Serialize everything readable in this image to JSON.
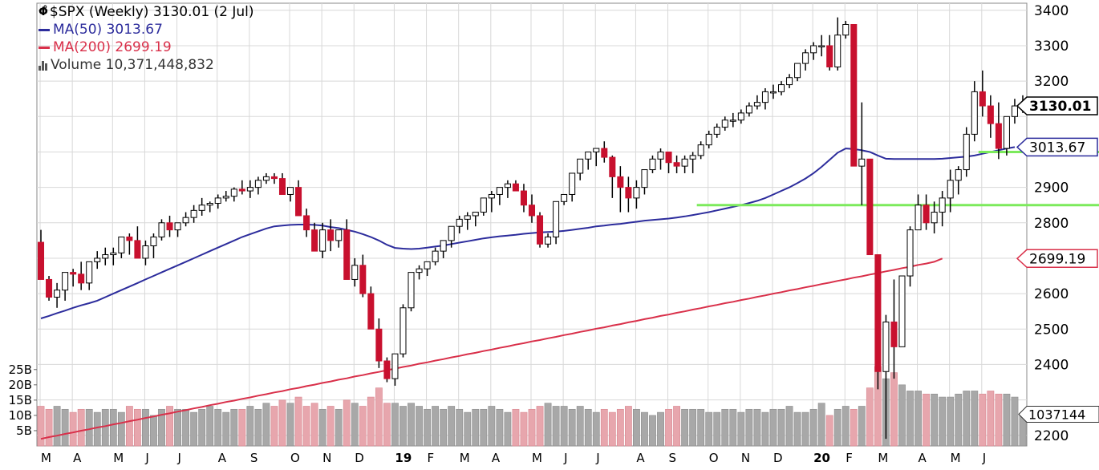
{
  "legend": {
    "symbol_line": "$SPX (Weekly) 3130.01 (2 Jul)",
    "ma50_line": "MA(50) 3013.67",
    "ma200_line": "MA(200) 2699.19",
    "volume_line": "Volume 10,371,448,832"
  },
  "colors": {
    "up_fill": "#ffffff",
    "down_fill": "#c8102e",
    "candle_outline": "#000000",
    "ma50": "#2c2c9c",
    "ma200": "#d9304a",
    "support": "#7cea5c",
    "volume_up": "#a8a8a8",
    "volume_down": "#e7a6ad",
    "grid": "#d8d8d8"
  },
  "chart_data": {
    "type": "candlestick",
    "symbol": "$SPX",
    "interval": "Weekly",
    "ylim": [
      2170,
      3420
    ],
    "y_ticks": [
      2200,
      2300,
      2400,
      2500,
      2600,
      2700,
      2800,
      2900,
      3000,
      3100,
      3200,
      3300,
      3400
    ],
    "y_tick_labels": [
      "2200",
      "",
      "2400",
      "2500",
      "2600",
      "",
      "2800",
      "2900",
      "",
      "",
      "3200",
      "3300",
      "3400"
    ],
    "volume_ticks": [
      "5B",
      "10B",
      "15B",
      "20B",
      "25B"
    ],
    "volume_tick_values": [
      5,
      10,
      15,
      20,
      25
    ],
    "volume_ylim": [
      0,
      42
    ],
    "x_labels": [
      "M",
      "A",
      "M",
      "J",
      "J",
      "A",
      "S",
      "O",
      "N",
      "D",
      "19",
      "F",
      "M",
      "A",
      "M",
      "J",
      "J",
      "A",
      "S",
      "O",
      "N",
      "D",
      "20",
      "F",
      "M",
      "A",
      "M",
      "J"
    ],
    "x_label_week_index": [
      0,
      4,
      9,
      13,
      17,
      22,
      26,
      31,
      35,
      39,
      44,
      48,
      52,
      56,
      61,
      65,
      69,
      74,
      78,
      83,
      87,
      91,
      96,
      100,
      104,
      109,
      113,
      117
    ],
    "price_badges": [
      {
        "label": "3130.01",
        "value": 3130.01,
        "style": "last"
      },
      {
        "label": "3013.67",
        "value": 3013.67,
        "style": "ma50"
      },
      {
        "label": "2699.19",
        "value": 2699.19,
        "style": "ma200"
      }
    ],
    "volume_badge": {
      "label": "1037144",
      "value": 10.37
    },
    "support_lines": [
      {
        "value": 3000,
        "from_week": 117,
        "to_week": 122
      },
      {
        "value": 2850,
        "from_week": 82,
        "to_week": 122
      }
    ],
    "series": [
      {
        "name": "MA(50)",
        "values": [
          2530,
          2537,
          2545,
          2552,
          2560,
          2567,
          2573,
          2580,
          2590,
          2600,
          2610,
          2620,
          2630,
          2640,
          2650,
          2660,
          2670,
          2680,
          2690,
          2700,
          2710,
          2720,
          2730,
          2740,
          2750,
          2760,
          2768,
          2776,
          2784,
          2790,
          2792,
          2794,
          2795,
          2795,
          2794,
          2792,
          2788,
          2785,
          2780,
          2775,
          2768,
          2760,
          2750,
          2738,
          2729,
          2727,
          2726,
          2727,
          2730,
          2733,
          2736,
          2740,
          2744,
          2748,
          2752,
          2756,
          2759,
          2762,
          2764,
          2766,
          2769,
          2771,
          2773,
          2774,
          2775,
          2777,
          2780,
          2783,
          2786,
          2790,
          2792,
          2795,
          2797,
          2800,
          2803,
          2806,
          2808,
          2810,
          2812,
          2815,
          2818,
          2822,
          2826,
          2830,
          2835,
          2840,
          2845,
          2850,
          2856,
          2862,
          2870,
          2880,
          2890,
          2900,
          2912,
          2925,
          2940,
          2958,
          2978,
          2998,
          3010,
          3008,
          3005,
          3000,
          2990,
          2981,
          2980,
          2980,
          2980,
          2980,
          2980,
          2980,
          2981,
          2983,
          2985,
          2987,
          2990,
          2995,
          3000,
          3005,
          3010,
          3013.67
        ]
      },
      {
        "name": "MA(200)",
        "values": [
          2190,
          2195,
          2199,
          2204,
          2208,
          2213,
          2217,
          2222,
          2226,
          2231,
          2235,
          2240,
          2244,
          2249,
          2253,
          2258,
          2262,
          2267,
          2271,
          2276,
          2280,
          2285,
          2289,
          2294,
          2298,
          2303,
          2307,
          2312,
          2316,
          2321,
          2325,
          2330,
          2334,
          2339,
          2343,
          2348,
          2352,
          2357,
          2361,
          2366,
          2370,
          2375,
          2379,
          2384,
          2388,
          2393,
          2397,
          2402,
          2406,
          2411,
          2415,
          2420,
          2424,
          2429,
          2433,
          2438,
          2442,
          2447,
          2451,
          2456,
          2460,
          2465,
          2469,
          2474,
          2478,
          2483,
          2487,
          2492,
          2496,
          2501,
          2505,
          2510,
          2514,
          2519,
          2523,
          2528,
          2532,
          2537,
          2541,
          2546,
          2550,
          2555,
          2559,
          2564,
          2568,
          2573,
          2577,
          2582,
          2586,
          2591,
          2595,
          2600,
          2604,
          2609,
          2613,
          2618,
          2622,
          2627,
          2631,
          2636,
          2640,
          2645,
          2649,
          2654,
          2658,
          2663,
          2667,
          2672,
          2676,
          2681,
          2685,
          2690,
          2699.19
        ]
      },
      {
        "name": "Candles",
        "open": [
          2745,
          2640,
          2590,
          2610,
          2660,
          2655,
          2630,
          2690,
          2700,
          2710,
          2715,
          2760,
          2750,
          2700,
          2735,
          2760,
          2800,
          2780,
          2800,
          2815,
          2835,
          2850,
          2855,
          2870,
          2875,
          2895,
          2890,
          2900,
          2920,
          2930,
          2925,
          2880,
          2900,
          2820,
          2780,
          2720,
          2780,
          2750,
          2780,
          2640,
          2680,
          2600,
          2500,
          2410,
          2360,
          2430,
          2560,
          2660,
          2670,
          2690,
          2720,
          2750,
          2790,
          2810,
          2820,
          2830,
          2870,
          2880,
          2900,
          2910,
          2890,
          2850,
          2820,
          2740,
          2760,
          2860,
          2880,
          2940,
          2980,
          3000,
          3010,
          2985,
          2930,
          2900,
          2870,
          2900,
          2950,
          2980,
          3000,
          2970,
          2960,
          2980,
          2990,
          3020,
          3050,
          3070,
          3090,
          3090,
          3110,
          3130,
          3140,
          3170,
          3170,
          3190,
          3210,
          3250,
          3280,
          3300,
          3300,
          3240,
          3330,
          3360,
          2960,
          2980,
          2710,
          2380,
          2520,
          2450,
          2650,
          2780,
          2850,
          2800,
          2830,
          2870,
          2920,
          2950,
          3050,
          3170,
          3130,
          3080,
          3010,
          3100,
          3130
        ]
      },
      {
        "name": "Candles.high",
        "values": [
          2780,
          2650,
          2630,
          2640,
          2670,
          2690,
          2690,
          2720,
          2730,
          2730,
          2760,
          2770,
          2790,
          2750,
          2770,
          2810,
          2820,
          2800,
          2830,
          2850,
          2870,
          2860,
          2880,
          2890,
          2900,
          2920,
          2920,
          2930,
          2940,
          2940,
          2940,
          2900,
          2920,
          2840,
          2800,
          2800,
          2810,
          2780,
          2810,
          2700,
          2710,
          2620,
          2530,
          2420,
          2430,
          2570,
          2650,
          2680,
          2690,
          2730,
          2750,
          2790,
          2820,
          2830,
          2830,
          2870,
          2890,
          2900,
          2920,
          2920,
          2910,
          2880,
          2830,
          2770,
          2850,
          2880,
          2940,
          2980,
          3000,
          3010,
          3030,
          2990,
          2960,
          2930,
          2920,
          2950,
          2990,
          3010,
          3000,
          2990,
          2990,
          3000,
          3030,
          3060,
          3080,
          3100,
          3110,
          3120,
          3140,
          3160,
          3180,
          3190,
          3200,
          3220,
          3250,
          3290,
          3310,
          3330,
          3330,
          3380,
          3370,
          3360,
          3140,
          2980,
          2710,
          2540,
          2640,
          2650,
          2790,
          2880,
          2880,
          2860,
          2890,
          2950,
          2960,
          3070,
          3200,
          3230,
          3160,
          3140,
          3100,
          3150,
          3160
        ]
      },
      {
        "name": "Candles.low",
        "values": [
          2680,
          2580,
          2560,
          2580,
          2620,
          2610,
          2610,
          2670,
          2680,
          2680,
          2700,
          2710,
          2720,
          2680,
          2700,
          2750,
          2760,
          2760,
          2790,
          2800,
          2820,
          2830,
          2840,
          2860,
          2860,
          2880,
          2870,
          2880,
          2910,
          2910,
          2880,
          2860,
          2860,
          2760,
          2730,
          2700,
          2720,
          2730,
          2650,
          2620,
          2590,
          2520,
          2390,
          2350,
          2340,
          2420,
          2550,
          2640,
          2650,
          2680,
          2700,
          2730,
          2770,
          2780,
          2790,
          2820,
          2830,
          2850,
          2870,
          2890,
          2830,
          2800,
          2730,
          2730,
          2740,
          2850,
          2860,
          2920,
          2950,
          2960,
          2970,
          2870,
          2830,
          2830,
          2840,
          2880,
          2940,
          2950,
          2940,
          2940,
          2940,
          2940,
          2980,
          3010,
          3040,
          3060,
          3070,
          3080,
          3100,
          3120,
          3120,
          3150,
          3160,
          3180,
          3200,
          3230,
          3260,
          3270,
          3230,
          3230,
          3320,
          3200,
          2850,
          2720,
          2330,
          2190,
          2360,
          2450,
          2620,
          2780,
          2780,
          2770,
          2790,
          2830,
          2880,
          2930,
          3030,
          3100,
          3040,
          2980,
          2990,
          3080,
          3110
        ]
      },
      {
        "name": "Candles.close",
        "values": [
          2640,
          2590,
          2610,
          2660,
          2655,
          2630,
          2690,
          2700,
          2710,
          2715,
          2760,
          2750,
          2700,
          2735,
          2760,
          2800,
          2780,
          2800,
          2815,
          2835,
          2850,
          2855,
          2870,
          2875,
          2895,
          2890,
          2900,
          2920,
          2930,
          2925,
          2880,
          2900,
          2820,
          2780,
          2720,
          2780,
          2750,
          2780,
          2640,
          2680,
          2600,
          2500,
          2410,
          2360,
          2430,
          2560,
          2660,
          2670,
          2690,
          2720,
          2750,
          2790,
          2810,
          2820,
          2830,
          2870,
          2880,
          2900,
          2910,
          2890,
          2850,
          2820,
          2740,
          2760,
          2860,
          2880,
          2940,
          2980,
          3000,
          3010,
          2985,
          2930,
          2900,
          2870,
          2900,
          2950,
          2980,
          3000,
          2970,
          2960,
          2980,
          2990,
          3020,
          3050,
          3070,
          3090,
          3090,
          3110,
          3130,
          3140,
          3170,
          3170,
          3190,
          3210,
          3250,
          3280,
          3300,
          3300,
          3240,
          3330,
          3360,
          2960,
          2980,
          2710,
          2380,
          2520,
          2450,
          2650,
          2780,
          2850,
          2800,
          2830,
          2870,
          2920,
          2950,
          3050,
          3170,
          3130,
          3080,
          3010,
          3100,
          3130,
          3130.01
        ]
      },
      {
        "name": "Volume",
        "values": [
          13,
          12,
          13,
          12,
          11,
          12,
          12,
          11,
          12,
          12,
          11,
          13,
          12,
          12,
          10,
          12,
          13,
          12,
          12,
          11,
          12,
          13,
          12,
          11,
          12,
          12,
          13,
          12,
          14,
          13,
          15,
          14,
          16,
          13,
          14,
          12,
          13,
          12,
          15,
          14,
          13,
          16,
          19,
          14,
          14,
          13,
          14,
          13,
          12,
          13,
          12,
          13,
          12,
          11,
          12,
          12,
          13,
          12,
          11,
          12,
          11,
          12,
          13,
          14,
          13,
          13,
          12,
          13,
          12,
          11,
          12,
          11,
          12,
          13,
          12,
          11,
          10,
          11,
          12,
          13,
          12,
          12,
          12,
          11,
          11,
          12,
          12,
          11,
          12,
          12,
          11,
          12,
          12,
          13,
          11,
          11,
          12,
          14,
          10,
          12,
          13,
          12,
          13,
          19,
          26,
          22,
          24,
          20,
          18,
          18,
          17,
          17,
          16,
          16,
          17,
          18,
          18,
          17,
          18,
          17,
          17,
          16,
          10.37
        ]
      }
    ]
  }
}
